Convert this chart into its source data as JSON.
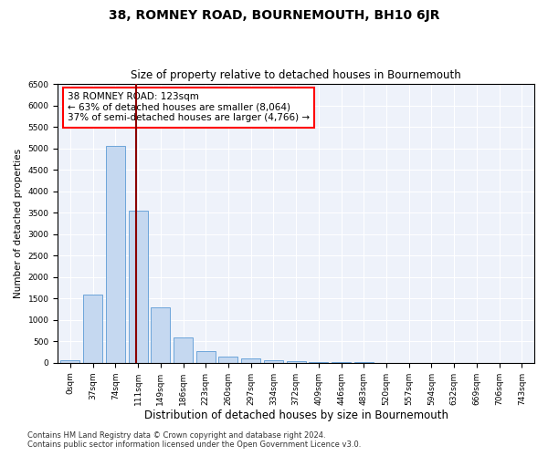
{
  "title": "38, ROMNEY ROAD, BOURNEMOUTH, BH10 6JR",
  "subtitle": "Size of property relative to detached houses in Bournemouth",
  "xlabel": "Distribution of detached houses by size in Bournemouth",
  "ylabel": "Number of detached properties",
  "bar_labels": [
    "0sqm",
    "37sqm",
    "74sqm",
    "111sqm",
    "149sqm",
    "186sqm",
    "223sqm",
    "260sqm",
    "297sqm",
    "334sqm",
    "372sqm",
    "409sqm",
    "446sqm",
    "483sqm",
    "520sqm",
    "557sqm",
    "594sqm",
    "632sqm",
    "669sqm",
    "706sqm",
    "743sqm"
  ],
  "bar_values": [
    50,
    1600,
    5050,
    3550,
    1300,
    600,
    280,
    145,
    100,
    55,
    35,
    20,
    12,
    8,
    5,
    3,
    2,
    1,
    1,
    0,
    0
  ],
  "bar_color": "#c5d8f0",
  "bar_edge_color": "#5b9bd5",
  "annotation_text": "38 ROMNEY ROAD: 123sqm\n← 63% of detached houses are smaller (8,064)\n37% of semi-detached houses are larger (4,766) →",
  "annotation_box_color": "white",
  "annotation_box_edge_color": "red",
  "vline_color": "#8b0000",
  "vline_x": 2.925,
  "ylim": [
    0,
    6500
  ],
  "yticks": [
    0,
    500,
    1000,
    1500,
    2000,
    2500,
    3000,
    3500,
    4000,
    4500,
    5000,
    5500,
    6000,
    6500
  ],
  "footer_line1": "Contains HM Land Registry data © Crown copyright and database right 2024.",
  "footer_line2": "Contains public sector information licensed under the Open Government Licence v3.0.",
  "bg_color": "#eef2fa",
  "title_fontsize": 10,
  "subtitle_fontsize": 8.5,
  "xlabel_fontsize": 8.5,
  "ylabel_fontsize": 7.5,
  "tick_fontsize": 6.5,
  "footer_fontsize": 6,
  "annotation_fontsize": 7.5
}
